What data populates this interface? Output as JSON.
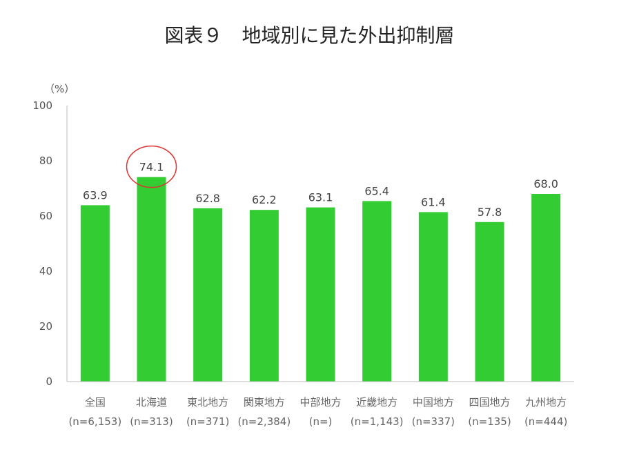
{
  "chart_data": {
    "type": "bar",
    "title": "図表９　地域別に見た外出抑制層",
    "unit": "（%）",
    "categories": [
      "全国",
      "北海道",
      "東北地方",
      "関東地方",
      "中部地方",
      "近畿地方",
      "中国地方",
      "四国地方",
      "九州地方"
    ],
    "sample_sizes": [
      "(n=6,153)",
      "(n=313)",
      "(n=371)",
      "(n=2,384)",
      "(n=)",
      "(n=1,143)",
      "(n=337)",
      "(n=135)",
      "(n=444)"
    ],
    "values": [
      63.9,
      74.1,
      62.8,
      62.2,
      63.1,
      65.4,
      61.4,
      57.8,
      68.0
    ],
    "value_labels": [
      "63.9",
      "74.1",
      "62.8",
      "62.2",
      "63.1",
      "65.4",
      "61.4",
      "57.8",
      "68.0"
    ],
    "ylim": [
      0,
      100
    ],
    "yticks": [
      "0",
      "20",
      "40",
      "60",
      "80",
      "100"
    ],
    "bar_color": "#33cc33",
    "highlight_color": "#dd3333",
    "highlight_category": "北海道",
    "grid": false
  }
}
